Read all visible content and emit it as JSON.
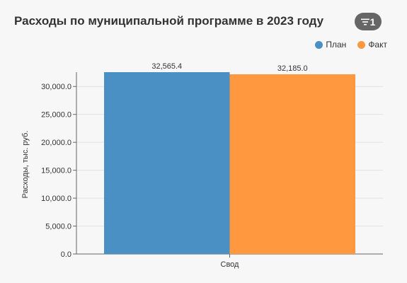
{
  "filter": {
    "count": "1",
    "icon": "filter-icon"
  },
  "chart_data": {
    "type": "bar",
    "title": "Расходы по муниципальной программе в 2023 году",
    "ylabel": "Расходы, тыс. руб.",
    "xlabel": "",
    "categories": [
      "Свод"
    ],
    "series": [
      {
        "name": "План",
        "values": [
          32565.4
        ],
        "color": "#4a90c4",
        "value_label": "32,565.4"
      },
      {
        "name": "Факт",
        "values": [
          32185.0
        ],
        "color": "#ff983f",
        "value_label": "32,185.0"
      }
    ],
    "ylim": [
      0,
      32565.4
    ],
    "yticks": [
      0,
      5000,
      10000,
      15000,
      20000,
      25000,
      30000
    ],
    "ytick_labels": [
      "0.0",
      "5,000.0",
      "10,000.0",
      "15,000.0",
      "20,000.0",
      "25,000.0",
      "30,000.0"
    ],
    "grid": true,
    "legend_position": "top-right"
  }
}
